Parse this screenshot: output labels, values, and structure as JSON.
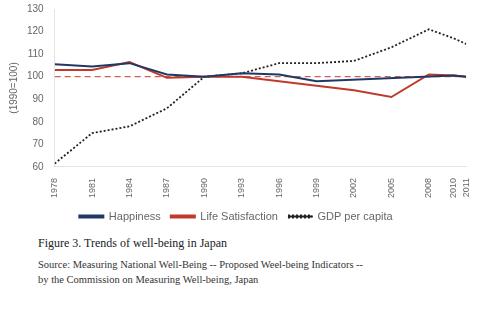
{
  "chart_data": {
    "type": "line",
    "ylabel": "(1990=100)",
    "caption": "Figure 3. Trends of well-being in Japan",
    "source": [
      "Source:  Measuring National Well-Being -- Proposed Weel-being Indicators --",
      "by the Commission on Measuring Well-being, Japan"
    ],
    "xlim": [
      1978,
      2011
    ],
    "xticks": [
      1978,
      1981,
      1984,
      1987,
      1990,
      1993,
      1996,
      1999,
      2002,
      2005,
      2008,
      2010,
      2011
    ],
    "ylim": [
      60,
      130
    ],
    "yticks": [
      60,
      70,
      80,
      90,
      100,
      110,
      120,
      130
    ],
    "grid": false,
    "legend": "bottom",
    "series": [
      {
        "name": "Happiness",
        "color": "#1f3864",
        "line_style": "solid",
        "marker": "none",
        "x": [
          1978,
          1981,
          1984,
          1987,
          1990,
          1993,
          1996,
          1999,
          2010,
          2011
        ],
        "values": [
          105.5,
          104.5,
          106.0,
          101.0,
          100.0,
          101.5,
          101.0,
          98.0,
          100.5,
          100.0
        ]
      },
      {
        "name": "Life Satisfaction",
        "color": "#c0392b",
        "line_style": "solid",
        "marker": "none",
        "x": [
          1978,
          1981,
          1984,
          1987,
          1990,
          1993,
          1996,
          1999,
          2002,
          2005,
          2008,
          2010,
          2011
        ],
        "values": [
          103.0,
          103.0,
          106.5,
          99.5,
          100.0,
          100.0,
          98.0,
          96.0,
          94.0,
          91.0,
          101.0,
          100.5,
          100.0
        ]
      },
      {
        "name": "GDP per capita",
        "color": "#222222",
        "line_style": "dotted",
        "marker": "none",
        "x": [
          1978,
          1981,
          1984,
          1987,
          1990,
          1993,
          1996,
          1999,
          2002,
          2005,
          2008,
          2010,
          2011
        ],
        "values": [
          61.5,
          75.0,
          78.0,
          86.0,
          100.0,
          101.5,
          106.0,
          106.0,
          107.0,
          113.0,
          121.0,
          117.0,
          114.5
        ]
      }
    ],
    "reference_lines": [
      {
        "value": 100,
        "color": "#c0392b",
        "line_style": "dashed"
      }
    ]
  }
}
